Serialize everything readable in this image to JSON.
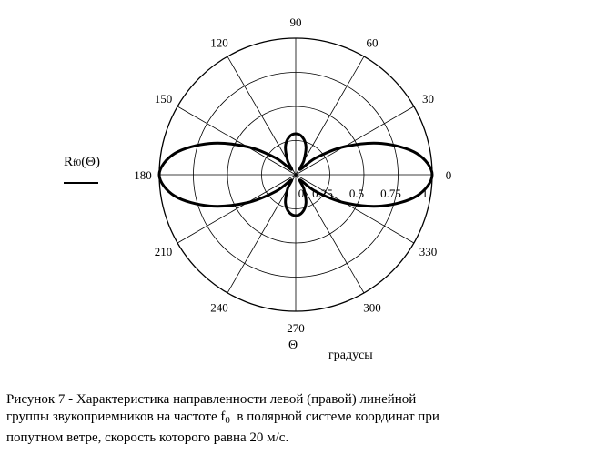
{
  "chart_data": {
    "type": "line",
    "coordinate_system": "polar",
    "series": [
      {
        "name": "R_f0(Θ)",
        "theta_deg": [
          0,
          10,
          20,
          30,
          40,
          50,
          60,
          70,
          80,
          90,
          100,
          110,
          120,
          130,
          140,
          150,
          160,
          170,
          180,
          190,
          200,
          210,
          220,
          230,
          240,
          250,
          260,
          270,
          280,
          290,
          300,
          310,
          320,
          330,
          340,
          350
        ],
        "r": [
          1.0,
          0.9,
          0.67,
          0.41,
          0.19,
          0.05,
          0.12,
          0.22,
          0.28,
          0.3,
          0.28,
          0.22,
          0.12,
          0.05,
          0.19,
          0.41,
          0.67,
          0.9,
          1.0,
          0.9,
          0.67,
          0.41,
          0.19,
          0.05,
          0.12,
          0.22,
          0.28,
          0.3,
          0.28,
          0.22,
          0.12,
          0.05,
          0.19,
          0.41,
          0.67,
          0.9
        ]
      }
    ],
    "radial_ticks": [
      "0",
      "0.25",
      "0.5",
      "0.75",
      "1"
    ],
    "radial_values": [
      0,
      0.25,
      0.5,
      0.75,
      1
    ],
    "radial_range": [
      0,
      1
    ],
    "angular_ticks": [
      "0",
      "30",
      "60",
      "90",
      "120",
      "150",
      "180",
      "210",
      "240",
      "270",
      "300",
      "330"
    ],
    "angular_values_deg": [
      0,
      30,
      60,
      90,
      120,
      150,
      180,
      210,
      240,
      270,
      300,
      330
    ],
    "grid": true,
    "legend": {
      "label_main": "R",
      "label_sub": "f0",
      "label_arg": "(Θ)",
      "placement": "left"
    },
    "axis_symbol": "Θ",
    "axis_units": "градусы"
  },
  "caption": {
    "line1_a": "Рисунок 7 - Характеристика направленности левой (правой) линейной",
    "line2_a": "группы звукоприемников на частоте f",
    "line2_sub": "0",
    "line2_b": "  в полярной системе координат при",
    "line3": "попутном ветре, скорость которого равна 20 м/с."
  }
}
